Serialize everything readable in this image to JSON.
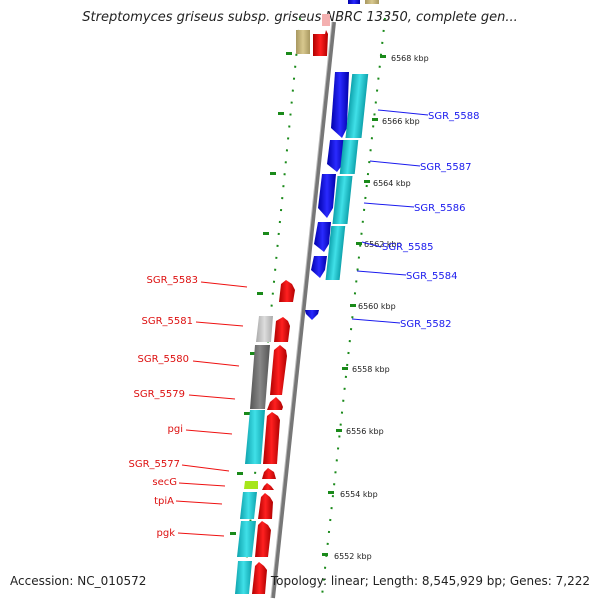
{
  "title": "Streptomyces griseus subsp. griseus NBRC 13350, complete gen...",
  "footer": {
    "accession": "Accession: NC_010572",
    "summary": "Topology: linear; Length: 8,545,929 bp; Genes: 7,222"
  },
  "scale": [
    "6568 kbp",
    "6566 kbp",
    "6564 kbp",
    "6562 kbp",
    "6560 kbp",
    "6558 kbp",
    "6556 kbp",
    "6554 kbp",
    "6552 kbp"
  ],
  "genes_forward": [
    "SGR_5588",
    "SGR_5587",
    "SGR_5586",
    "SGR_5585",
    "SGR_5584",
    "SGR_5582"
  ],
  "genes_reverse": [
    "SGR_5583",
    "SGR_5581",
    "SGR_5580",
    "SGR_5579",
    "pgi",
    "SGR_5577",
    "secG",
    "tpiA",
    "pgk"
  ],
  "colors": {
    "forward_gene": "#0000ee",
    "reverse_gene": "#ee0000",
    "cds_cyan": "#1cc6d0",
    "axis": "#808080",
    "ticks": "#1a8a1a",
    "pseudo": "#c8b87a"
  }
}
